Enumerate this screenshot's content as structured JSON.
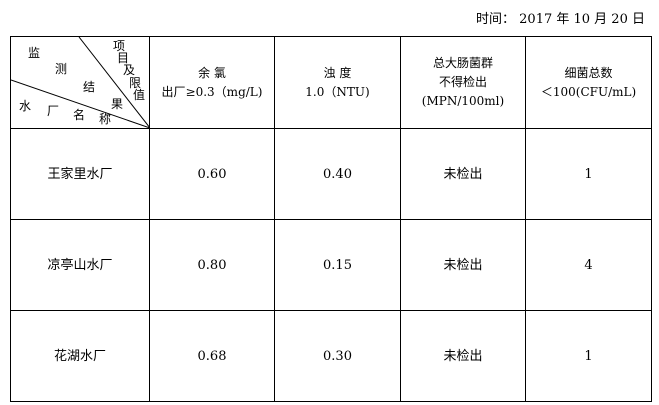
{
  "date": {
    "label": "时间：",
    "value": "2017 年 10 月 20 日"
  },
  "corner": {
    "top_chars": [
      "监",
      "测",
      "结",
      "果"
    ],
    "right_chars": [
      "项",
      "目",
      "及",
      "限",
      "值"
    ],
    "bottom_chars": [
      "水",
      "厂",
      "名",
      "称"
    ]
  },
  "columns": [
    {
      "line1": "余 氯",
      "line2": "出厂≥0.3（mg/L)"
    },
    {
      "line1": "浊 度",
      "line2": "1.0（NTU)"
    },
    {
      "line1": "总大肠菌群",
      "line2": "不得检出",
      "line3": "(MPN/100ml)"
    },
    {
      "line1": "细菌总数",
      "line2": "＜100(CFU/mL)"
    }
  ],
  "rows": [
    {
      "name": "王家里水厂",
      "values": [
        "0.60",
        "0.40",
        "未检出",
        "1"
      ]
    },
    {
      "name": "凉亭山水厂",
      "values": [
        "0.80",
        "0.15",
        "未检出",
        "4"
      ]
    },
    {
      "name": "花湖水厂",
      "values": [
        "0.68",
        "0.30",
        "未检出",
        "1"
      ]
    }
  ]
}
